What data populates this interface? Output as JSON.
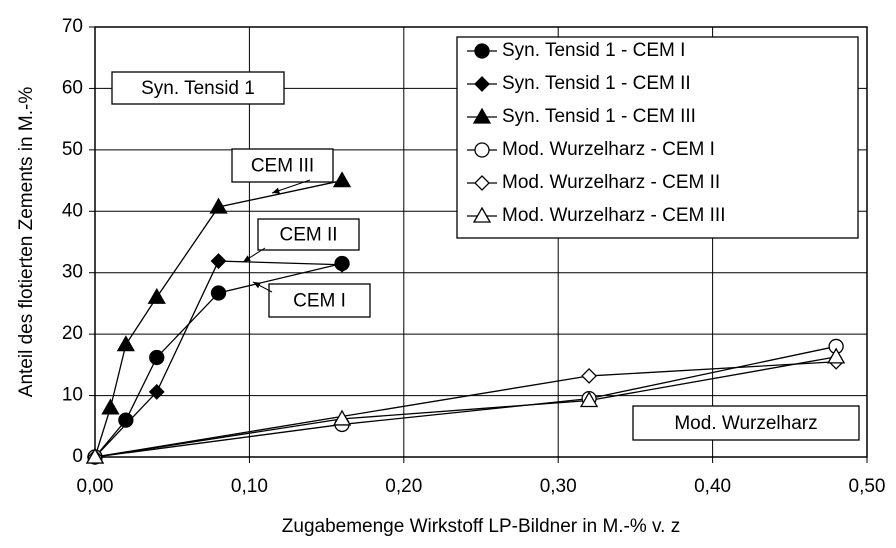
{
  "chart_data": {
    "type": "line",
    "x_label": "Zugabemenge Wirkstoff LP-Bildner in M.-% v. z",
    "y_label": "Anteil des flotierten Zements in M.-%",
    "xlim": [
      0,
      0.5
    ],
    "xticks": [
      {
        "value": 0,
        "label": "0,00"
      },
      {
        "value": 0.1,
        "label": "0,10"
      },
      {
        "value": 0.2,
        "label": "0,20"
      },
      {
        "value": 0.3,
        "label": "0,30"
      },
      {
        "value": 0.4,
        "label": "0,40"
      },
      {
        "value": 0.5,
        "label": "0,50"
      }
    ],
    "ylim": [
      0,
      70
    ],
    "yticks": [
      0,
      10,
      20,
      30,
      40,
      50,
      60,
      70
    ],
    "grid": true,
    "legend": "upper right",
    "series": [
      {
        "name": "Syn. Tensid 1 - CEM I",
        "marker": "circle",
        "filled": true,
        "color": "#000000",
        "x": [
          0,
          0.02,
          0.04,
          0.08,
          0.16
        ],
        "values": [
          0,
          6,
          16.2,
          26.7,
          31.5
        ]
      },
      {
        "name": "Syn. Tensid 1 - CEM II",
        "marker": "diamond",
        "filled": true,
        "color": "#000000",
        "x": [
          0,
          0.04,
          0.08,
          0.16
        ],
        "values": [
          0,
          10.6,
          31.9,
          31.3
        ]
      },
      {
        "name": "Syn. Tensid 1 - CEM III",
        "marker": "triangle",
        "filled": true,
        "color": "#000000",
        "x": [
          0,
          0.01,
          0.02,
          0.04,
          0.08,
          0.16
        ],
        "values": [
          0,
          8,
          18.3,
          26,
          40.7,
          45
        ]
      },
      {
        "name": "Mod. Wurzelharz - CEM I",
        "marker": "circle",
        "filled": false,
        "color": "#000000",
        "x": [
          0,
          0.16,
          0.32,
          0.48
        ],
        "values": [
          0,
          5.3,
          9.5,
          18
        ]
      },
      {
        "name": "Mod. Wurzelharz - CEM II",
        "marker": "diamond",
        "filled": false,
        "color": "#000000",
        "x": [
          0,
          0.32,
          0.48
        ],
        "values": [
          0,
          13.2,
          15.5
        ]
      },
      {
        "name": "Mod. Wurzelharz - CEM III",
        "marker": "triangle",
        "filled": false,
        "color": "#000000",
        "x": [
          0,
          0.16,
          0.32,
          0.48
        ],
        "values": [
          0,
          6.2,
          9.2,
          16.3
        ]
      }
    ],
    "annotations": [
      "Syn. Tensid 1",
      "CEM III",
      "CEM II",
      "CEM I",
      "Mod. Wurzelharz"
    ]
  }
}
